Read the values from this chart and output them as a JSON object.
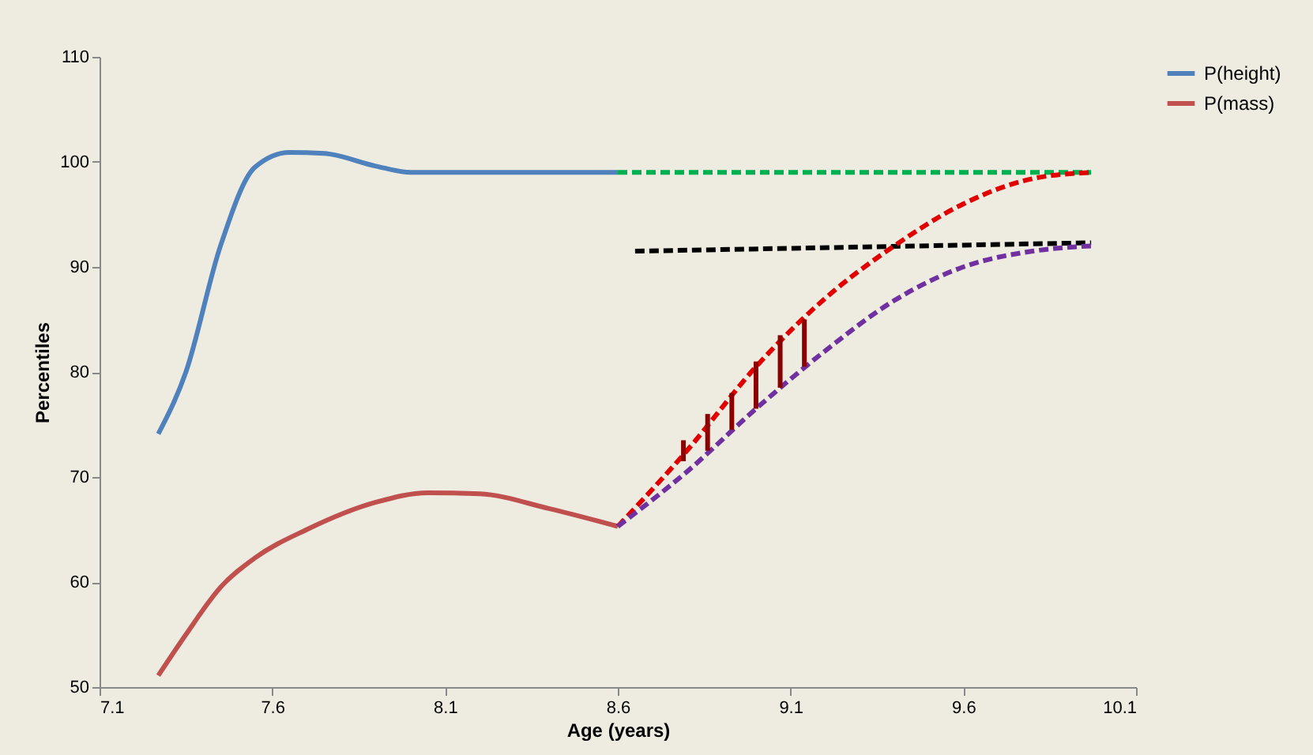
{
  "chart_data": {
    "type": "line",
    "xlabel": "Age (years)",
    "ylabel": "Percentiles",
    "xlim": [
      7.1,
      10.1
    ],
    "xticks": [
      7.1,
      7.6,
      8.1,
      8.6,
      9.1,
      9.6,
      10.1
    ],
    "ylim": [
      50,
      110
    ],
    "yticks": [
      50,
      60,
      70,
      80,
      90,
      100,
      110
    ],
    "grid": false,
    "legend": "right",
    "series": [
      {
        "name": "P(height)",
        "color": "#4f81bd",
        "line_style": "solid",
        "x": [
          7.27,
          7.35,
          7.45,
          7.55,
          7.65,
          7.75,
          7.9,
          8.0,
          8.3,
          8.6
        ],
        "values": [
          74.1,
          80,
          92,
          99.5,
          100.9,
          100.8,
          99.6,
          99.0,
          99,
          99
        ]
      },
      {
        "name": "P(mass)",
        "color": "#c0504d",
        "line_style": "solid",
        "x": [
          7.27,
          7.35,
          7.45,
          7.55,
          7.7,
          7.9,
          8.05,
          8.2,
          8.4,
          8.6
        ],
        "values": [
          51.1,
          55,
          59.5,
          62.3,
          65,
          67.6,
          68.5,
          68.4,
          67,
          65.3
        ]
      },
      {
        "color": "#00b050",
        "line_style": "dashed",
        "x": [
          8.6,
          9.97
        ],
        "values": [
          99,
          99
        ]
      },
      {
        "color": "#000000",
        "line_style": "dashed",
        "x": [
          8.65,
          9.97
        ],
        "values": [
          91.5,
          92.3
        ]
      },
      {
        "color": "#e00000",
        "line_style": "dashed",
        "x": [
          8.6,
          8.8,
          9.0,
          9.2,
          9.4,
          9.6,
          9.8,
          9.97
        ],
        "values": [
          65.3,
          72.5,
          80.5,
          87,
          92,
          96,
          98.4,
          99
        ]
      },
      {
        "color": "#7030a0",
        "line_style": "dashed",
        "x": [
          8.6,
          8.8,
          9.0,
          9.2,
          9.4,
          9.6,
          9.8,
          9.97
        ],
        "values": [
          65.3,
          70.5,
          76.5,
          82,
          86.8,
          90,
          91.5,
          92
        ]
      },
      {
        "color": "#8b0000",
        "line_style": "solid",
        "x": [
          8.79,
          8.79
        ],
        "values": [
          71.5,
          73.5
        ]
      },
      {
        "color": "#8b0000",
        "line_style": "solid",
        "x": [
          8.86,
          8.86
        ],
        "values": [
          72.5,
          76
        ]
      },
      {
        "color": "#8b0000",
        "line_style": "solid",
        "x": [
          8.93,
          8.93
        ],
        "values": [
          74.5,
          78
        ]
      },
      {
        "color": "#8b0000",
        "line_style": "solid",
        "x": [
          9.0,
          9.0
        ],
        "values": [
          76.5,
          81
        ]
      },
      {
        "color": "#8b0000",
        "line_style": "solid",
        "x": [
          9.07,
          9.07
        ],
        "values": [
          78.5,
          83.5
        ]
      },
      {
        "color": "#8b0000",
        "line_style": "solid",
        "x": [
          9.14,
          9.14
        ],
        "values": [
          80.5,
          85
        ]
      }
    ]
  }
}
